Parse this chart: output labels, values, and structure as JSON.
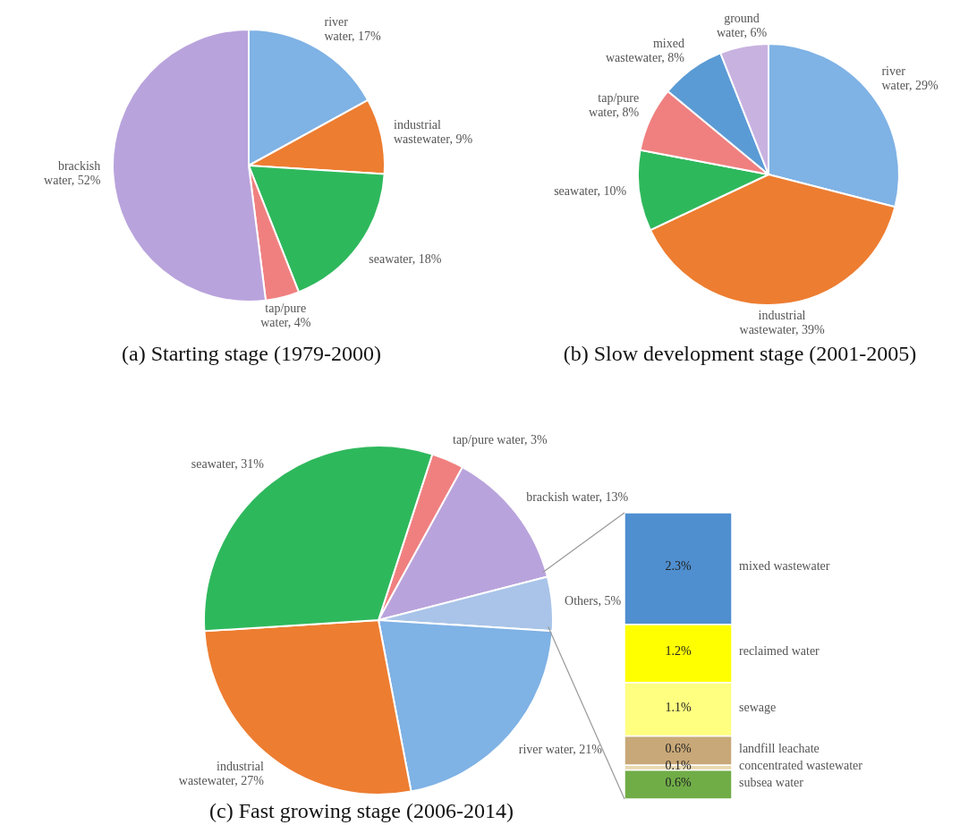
{
  "chart_data": [
    {
      "type": "pie",
      "title": "(a) Starting stage (1979-2000)",
      "categories": [
        "river water",
        "industrial wastewater",
        "seawater",
        "tap/pure water",
        "brackish water"
      ],
      "values": [
        17,
        9,
        18,
        4,
        52
      ],
      "value_labels": [
        "17%",
        "9%",
        "18%",
        "4%",
        "52%"
      ],
      "colors": [
        "#7fb2e5",
        "#ed7d31",
        "#2eb85c",
        "#f08080",
        "#b9a3dc"
      ]
    },
    {
      "type": "pie",
      "title": "(b) Slow development stage (2001-2005)",
      "categories": [
        "river water",
        "industrial wastewater",
        "seawater",
        "tap/pure water",
        "mixed wastewater",
        "ground water"
      ],
      "values": [
        29,
        39,
        10,
        8,
        8,
        6
      ],
      "value_labels": [
        "29%",
        "39%",
        "10%",
        "8%",
        "8%",
        "6%"
      ],
      "colors": [
        "#7fb2e5",
        "#ed7d31",
        "#2eb85c",
        "#f08080",
        "#5b9bd5",
        "#c8b2e0"
      ]
    },
    {
      "type": "pie",
      "title": "(c) Fast growing stage (2006-2014)",
      "categories": [
        "tap/pure water",
        "brackish water",
        "Others",
        "river water",
        "industrial wastewater",
        "seawater"
      ],
      "values": [
        3,
        13,
        5,
        21,
        27,
        31
      ],
      "value_labels": [
        "3%",
        "13%",
        "5%",
        "21%",
        "27%",
        "31%"
      ],
      "colors": [
        "#f08080",
        "#b9a3dc",
        "#a9c4e8",
        "#7fb2e5",
        "#ed7d31",
        "#2eb85c"
      ]
    },
    {
      "type": "bar",
      "stacked": true,
      "categories": [
        null
      ],
      "series": [
        {
          "name": "subsea water",
          "color": "#70ad47",
          "values": [
            0.6
          ],
          "value_labels": [
            "0.6%"
          ]
        },
        {
          "name": "concentrated wastewater",
          "color": "#e8d8b0",
          "values": [
            0.1
          ],
          "value_labels": [
            "0.1%"
          ]
        },
        {
          "name": "landfill leachate",
          "color": "#c8a878",
          "values": [
            0.6
          ],
          "value_labels": [
            "0.6%"
          ]
        },
        {
          "name": "sewage",
          "color": "#ffff80",
          "values": [
            1.1
          ],
          "value_labels": [
            "1.1%"
          ]
        },
        {
          "name": "reclaimed water",
          "color": "#ffff00",
          "values": [
            1.2
          ],
          "value_labels": [
            "1.2%"
          ]
        },
        {
          "name": "mixed wastewater",
          "color": "#4f8fd0",
          "values": [
            2.3
          ],
          "value_labels": [
            "2.3%"
          ]
        }
      ]
    }
  ]
}
